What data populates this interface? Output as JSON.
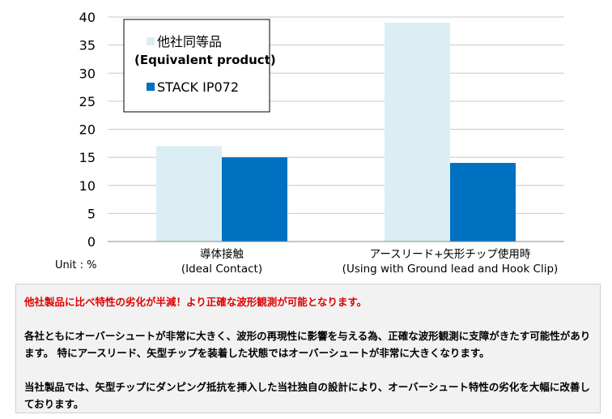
{
  "chart_data": {
    "type": "bar",
    "categories": [
      [
        "導体接触",
        "(Ideal Contact)"
      ],
      [
        "アースリード+矢形チップ使用時",
        "(Using with Ground lead and Hook Clip)"
      ]
    ],
    "series": [
      {
        "name": "他社同等品",
        "name_sub": "(Equivalent product)",
        "color": "#daeef3",
        "values": [
          17,
          39
        ]
      },
      {
        "name": "STACK IP072",
        "color": "#0070c0",
        "values": [
          15,
          14
        ]
      }
    ],
    "ylim": [
      0,
      40
    ],
    "yticks": [
      0,
      5,
      10,
      15,
      20,
      25,
      30,
      35,
      40
    ],
    "grid": true,
    "legend_position": "top-left",
    "unit_label": "Unit : %"
  },
  "notes": {
    "headline": "他社製品に比べ特性の劣化が半減！より正確な波形観測が可能となります。",
    "paragraph1": "各社ともにオーバーシュートが非常に大きく、波形の再現性に影響を与える為、正確な波形観測に支障がきたす可能性があります。 特にアースリード、矢型チップを装着した状態ではオーバーシュートが非常に大きくなります。",
    "paragraph2": "当社製品では、矢型チップにダンピング抵抗を挿入した当社独自の設計により、オーバーシュート特性の劣化を大幅に改善しております。"
  }
}
